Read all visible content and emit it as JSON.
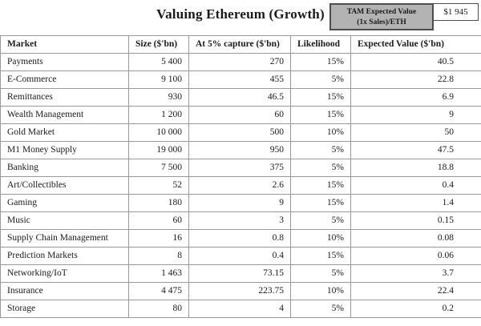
{
  "header": {
    "title": "Valuing Ethereum (Growth)",
    "tam_label_line1": "TAM Expected Value",
    "tam_label_line2": "(1x Sales)/ETH",
    "tam_value": "$1 945"
  },
  "table": {
    "columns": [
      "Market",
      "Size ($'bn)",
      "At 5% capture ($'bn)",
      "Likelihood",
      "Expected Value ($'bn)"
    ],
    "rows": [
      [
        "Payments",
        "5 400",
        "270",
        "15%",
        "40.5"
      ],
      [
        "E-Commerce",
        "9 100",
        "455",
        "5%",
        "22.8"
      ],
      [
        "Remittances",
        "930",
        "46.5",
        "15%",
        "6.9"
      ],
      [
        "Wealth Management",
        "1 200",
        "60",
        "15%",
        "9"
      ],
      [
        "Gold Market",
        "10 000",
        "500",
        "10%",
        "50"
      ],
      [
        "M1 Money Supply",
        "19 000",
        "950",
        "5%",
        "47.5"
      ],
      [
        "Banking",
        "7 500",
        "375",
        "5%",
        "18.8"
      ],
      [
        "Art/Collectibles",
        "52",
        "2.6",
        "15%",
        "0.4"
      ],
      [
        "Gaming",
        "180",
        "9",
        "15%",
        "1.4"
      ],
      [
        "Music",
        "60",
        "3",
        "5%",
        "0.15"
      ],
      [
        "Supply Chain Management",
        "16",
        "0.8",
        "10%",
        "0.08"
      ],
      [
        "Prediction Markets",
        "8",
        "0.4",
        "15%",
        "0.06"
      ],
      [
        "Networking/IoT",
        "1 463",
        "73.15",
        "5%",
        "3.7"
      ],
      [
        "Insurance",
        "4 475",
        "223.75",
        "10%",
        "22.4"
      ],
      [
        "Storage",
        "80",
        "4",
        "5%",
        "0.2"
      ]
    ]
  },
  "chart_data": {
    "type": "table",
    "title": "Valuing Ethereum (Growth)",
    "annotations": [
      "TAM Expected Value (1x Sales)/ETH = $1 945"
    ],
    "columns": [
      "Market",
      "Size ($'bn)",
      "At 5% capture ($'bn)",
      "Likelihood",
      "Expected Value ($'bn)"
    ],
    "rows": [
      {
        "market": "Payments",
        "size_bn": 5400,
        "at_5pct_capture_bn": 270,
        "likelihood": "15%",
        "expected_value_bn": 40.5
      },
      {
        "market": "E-Commerce",
        "size_bn": 9100,
        "at_5pct_capture_bn": 455,
        "likelihood": "5%",
        "expected_value_bn": 22.8
      },
      {
        "market": "Remittances",
        "size_bn": 930,
        "at_5pct_capture_bn": 46.5,
        "likelihood": "15%",
        "expected_value_bn": 6.9
      },
      {
        "market": "Wealth Management",
        "size_bn": 1200,
        "at_5pct_capture_bn": 60,
        "likelihood": "15%",
        "expected_value_bn": 9
      },
      {
        "market": "Gold Market",
        "size_bn": 10000,
        "at_5pct_capture_bn": 500,
        "likelihood": "10%",
        "expected_value_bn": 50
      },
      {
        "market": "M1 Money Supply",
        "size_bn": 19000,
        "at_5pct_capture_bn": 950,
        "likelihood": "5%",
        "expected_value_bn": 47.5
      },
      {
        "market": "Banking",
        "size_bn": 7500,
        "at_5pct_capture_bn": 375,
        "likelihood": "5%",
        "expected_value_bn": 18.8
      },
      {
        "market": "Art/Collectibles",
        "size_bn": 52,
        "at_5pct_capture_bn": 2.6,
        "likelihood": "15%",
        "expected_value_bn": 0.4
      },
      {
        "market": "Gaming",
        "size_bn": 180,
        "at_5pct_capture_bn": 9,
        "likelihood": "15%",
        "expected_value_bn": 1.4
      },
      {
        "market": "Music",
        "size_bn": 60,
        "at_5pct_capture_bn": 3,
        "likelihood": "5%",
        "expected_value_bn": 0.15
      },
      {
        "market": "Supply Chain Management",
        "size_bn": 16,
        "at_5pct_capture_bn": 0.8,
        "likelihood": "10%",
        "expected_value_bn": 0.08
      },
      {
        "market": "Prediction Markets",
        "size_bn": 8,
        "at_5pct_capture_bn": 0.4,
        "likelihood": "15%",
        "expected_value_bn": 0.06
      },
      {
        "market": "Networking/IoT",
        "size_bn": 1463,
        "at_5pct_capture_bn": 73.15,
        "likelihood": "5%",
        "expected_value_bn": 3.7
      },
      {
        "market": "Insurance",
        "size_bn": 4475,
        "at_5pct_capture_bn": 223.75,
        "likelihood": "10%",
        "expected_value_bn": 22.4
      },
      {
        "market": "Storage",
        "size_bn": 80,
        "at_5pct_capture_bn": 4,
        "likelihood": "5%",
        "expected_value_bn": 0.2
      }
    ],
    "tam_expected_value_per_eth": "$1 945"
  }
}
